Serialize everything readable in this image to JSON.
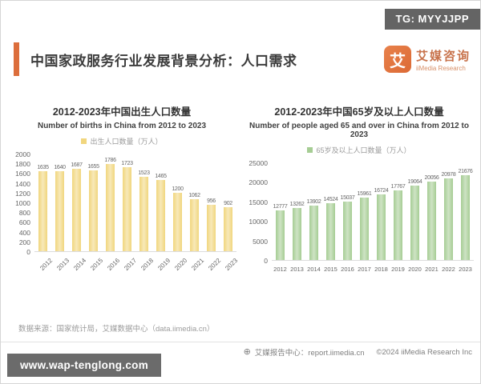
{
  "badge": {
    "text": "TG: MYYJJPP"
  },
  "header": {
    "title": "中国家政服务行业发展背景分析：人口需求"
  },
  "logo": {
    "symbol": "艾",
    "name_cn": "艾媒咨询",
    "name_en": "iiMedia Research"
  },
  "chart_data": [
    {
      "type": "bar",
      "title": "2012-2023年中国出生人口数量",
      "subtitle": "Number of births in China from 2012 to 2023",
      "legend": "出生人口数量（万人）",
      "categories": [
        "2012",
        "2013",
        "2014",
        "2015",
        "2016",
        "2017",
        "2018",
        "2019",
        "2020",
        "2021",
        "2022",
        "2023"
      ],
      "values": [
        1635,
        1640,
        1687,
        1655,
        1786,
        1723,
        1523,
        1465,
        1200,
        1062,
        956,
        902
      ],
      "xlabel": "",
      "ylabel": "",
      "ylim": [
        0,
        2000
      ],
      "yticks": [
        2000,
        1800,
        1600,
        1400,
        1200,
        1000,
        800,
        600,
        400,
        200,
        0
      ],
      "grid": false,
      "legend_position": "top",
      "bar_color": "#F1D67E",
      "xlabel_rotated": true
    },
    {
      "type": "bar",
      "title": "2012-2023年中国65岁及以上人口数量",
      "subtitle": "Number of people aged 65 and over in China from 2012 to 2023",
      "legend": "65岁及以上人口数量（万人）",
      "categories": [
        "2012",
        "2013",
        "2014",
        "2015",
        "2016",
        "2017",
        "2018",
        "2019",
        "2020",
        "2021",
        "2022",
        "2023"
      ],
      "values": [
        12777,
        13262,
        13902,
        14524,
        15037,
        15961,
        16724,
        17767,
        19064,
        20056,
        20978,
        21676
      ],
      "xlabel": "",
      "ylabel": "",
      "ylim": [
        0,
        25000
      ],
      "yticks": [
        25000,
        20000,
        15000,
        10000,
        5000,
        0
      ],
      "grid": false,
      "legend_position": "top",
      "bar_color": "#A6CD94",
      "xlabel_rotated": false
    }
  ],
  "footer": {
    "source": "数据来源：国家统计局，艾媒数据中心（data.iimedia.cn）",
    "report_center": "艾媒报告中心：report.iimedia.cn",
    "copyright": "©2024  iiMedia Research Inc"
  },
  "watermark": {
    "text": "www.wap-tenglong.com"
  },
  "colors": {
    "accent_orange": "#DC6E3C",
    "bar_yellow": "#F1D67E",
    "bar_green": "#A6CD94",
    "badge_bg": "#646464",
    "watermark_bg": "#6B6B6B"
  }
}
